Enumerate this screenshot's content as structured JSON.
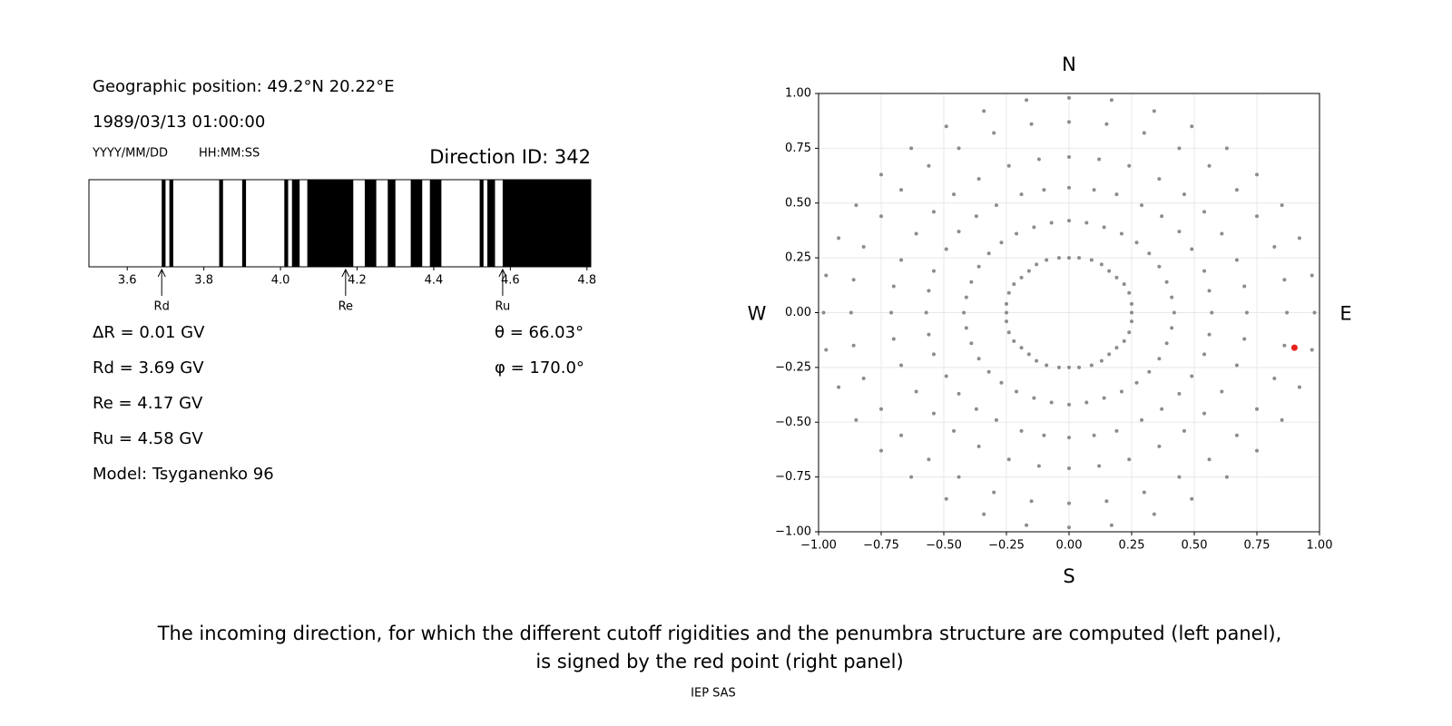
{
  "info": {
    "position": "Geographic position: 49.2°N 20.22°E",
    "datetime": "1989/03/13 01:00:00",
    "date_format": "YYYY/MM/DD",
    "time_format": "HH:MM:SS",
    "direction": "Direction ID: 342",
    "params": [
      "ΔR = 0.01 GV",
      "Rd = 3.69 GV",
      "Re = 4.17 GV",
      "Ru = 4.58 GV",
      "Model: Tsyganenko 96"
    ],
    "angles": [
      "θ = 66.03°",
      "φ = 170.0°"
    ]
  },
  "chart_data": [
    {
      "type": "penumbra",
      "color": "#000000",
      "xlim": [
        3.5,
        4.81
      ],
      "xticks": [
        3.6,
        3.8,
        {
          "value": 4,
          "label": "4.0"
        },
        4.2,
        4.4,
        4.6,
        4.8
      ],
      "bands": [
        [
          3.69,
          3.7
        ],
        [
          3.71,
          3.72
        ],
        [
          3.84,
          3.85
        ],
        [
          3.9,
          3.91
        ],
        [
          4.01,
          4.02
        ],
        [
          4.03,
          4.05
        ],
        [
          4.07,
          4.19
        ],
        [
          4.22,
          4.25
        ],
        [
          4.28,
          4.3
        ],
        [
          4.34,
          4.37
        ],
        [
          4.39,
          4.42
        ],
        [
          4.52,
          4.53
        ],
        [
          4.54,
          4.56
        ],
        [
          4.58,
          4.81
        ]
      ],
      "markers": [
        {
          "label": "Rd",
          "value": 3.69
        },
        {
          "label": "Re",
          "value": 4.17
        },
        {
          "label": "Ru",
          "value": 4.58
        }
      ]
    },
    {
      "type": "scatter",
      "grid": true,
      "xlim": [
        -1,
        1
      ],
      "ylim": [
        -1,
        1
      ],
      "xticks": [
        {
          "value": -1,
          "label": "−1.00"
        },
        {
          "value": -0.75,
          "label": "−0.75"
        },
        {
          "value": -0.5,
          "label": "−0.50"
        },
        {
          "value": -0.25,
          "label": "−0.25"
        },
        {
          "value": 0,
          "label": "0.00"
        },
        {
          "value": 0.25,
          "label": "0.25"
        },
        {
          "value": 0.5,
          "label": "0.50"
        },
        {
          "value": 0.75,
          "label": "0.75"
        },
        {
          "value": 1,
          "label": "1.00"
        }
      ],
      "yticks": [
        {
          "value": -1,
          "label": "−1.00"
        },
        {
          "value": -0.75,
          "label": "−0.75"
        },
        {
          "value": -0.5,
          "label": "−0.50"
        },
        {
          "value": -0.25,
          "label": "−0.25"
        },
        {
          "value": 0,
          "label": "0.00"
        },
        {
          "value": 0.25,
          "label": "0.25"
        },
        {
          "value": 0.5,
          "label": "0.50"
        },
        {
          "value": 0.75,
          "label": "0.75"
        },
        {
          "value": 1,
          "label": "1.00"
        }
      ],
      "compass": {
        "north": "N",
        "south": "S",
        "west": "W",
        "east": "E"
      },
      "series": [
        {
          "color": "#8c8c8c",
          "x": [
            0.25,
            0.25,
            0.24,
            0.22,
            0.19,
            0.16,
            0.13,
            0.09,
            0.04,
            0,
            -0.04,
            -0.09,
            -0.13,
            -0.16,
            -0.19,
            -0.22,
            -0.24,
            -0.25,
            -0.25,
            -0.25,
            -0.24,
            -0.22,
            -0.19,
            -0.16,
            -0.13,
            -0.09,
            -0.04,
            0,
            0.04,
            0.09,
            0.13,
            0.16,
            0.19,
            0.22,
            0.24,
            0.25,
            0.42,
            0.41,
            0.39,
            0.36,
            0.32,
            0.27,
            0.21,
            0.14,
            0.07,
            0,
            -0.07,
            -0.14,
            -0.21,
            -0.27,
            -0.32,
            -0.36,
            -0.39,
            -0.41,
            -0.42,
            -0.41,
            -0.39,
            -0.36,
            -0.32,
            -0.27,
            -0.21,
            -0.14,
            -0.07,
            0,
            0.07,
            0.14,
            0.21,
            0.27,
            0.32,
            0.36,
            0.39,
            0.41,
            0.57,
            0.56,
            0.54,
            0.49,
            0.44,
            0.37,
            0.29,
            0.19,
            0.1,
            0,
            -0.1,
            -0.19,
            -0.29,
            -0.37,
            -0.44,
            -0.49,
            -0.54,
            -0.56,
            -0.57,
            -0.56,
            -0.54,
            -0.49,
            -0.44,
            -0.37,
            -0.29,
            -0.19,
            -0.1,
            0,
            0.1,
            0.19,
            0.29,
            0.37,
            0.44,
            0.49,
            0.54,
            0.56,
            0.71,
            0.7,
            0.67,
            0.61,
            0.54,
            0.46,
            0.36,
            0.24,
            0.12,
            0,
            -0.12,
            -0.24,
            -0.36,
            -0.46,
            -0.54,
            -0.61,
            -0.67,
            -0.7,
            -0.71,
            -0.7,
            -0.67,
            -0.61,
            -0.54,
            -0.46,
            -0.36,
            -0.24,
            -0.12,
            0,
            0.12,
            0.24,
            0.36,
            0.46,
            0.54,
            0.61,
            0.67,
            0.7,
            0.87,
            0.86,
            0.82,
            0.75,
            0.67,
            0.56,
            0.44,
            0.3,
            0.15,
            0,
            -0.15,
            -0.3,
            -0.44,
            -0.56,
            -0.67,
            -0.75,
            -0.82,
            -0.86,
            -0.87,
            -0.86,
            -0.82,
            -0.75,
            -0.67,
            -0.56,
            -0.44,
            -0.3,
            -0.15,
            0,
            0.15,
            0.3,
            0.44,
            0.56,
            0.67,
            0.75,
            0.82,
            0.86,
            0.98,
            0.97,
            0.92,
            0.85,
            0.75,
            0.63,
            0.49,
            0.34,
            0.17,
            0,
            -0.17,
            -0.34,
            -0.49,
            -0.63,
            -0.75,
            -0.85,
            -0.92,
            -0.97,
            -0.98,
            -0.97,
            -0.92,
            -0.85,
            -0.75,
            -0.63,
            -0.49,
            -0.34,
            -0.17,
            0,
            0.17,
            0.34,
            0.49,
            0.63,
            0.75,
            0.85,
            0.92,
            0.97
          ],
          "y": [
            0,
            0.04,
            0.09,
            0.13,
            0.16,
            0.19,
            0.22,
            0.24,
            0.25,
            0.25,
            0.25,
            0.24,
            0.22,
            0.19,
            0.16,
            0.13,
            0.09,
            0.04,
            0,
            -0.04,
            -0.09,
            -0.13,
            -0.16,
            -0.19,
            -0.22,
            -0.24,
            -0.25,
            -0.25,
            -0.25,
            -0.24,
            -0.22,
            -0.19,
            -0.16,
            -0.13,
            -0.09,
            -0.04,
            0,
            0.07,
            0.14,
            0.21,
            0.27,
            0.32,
            0.36,
            0.39,
            0.41,
            0.42,
            0.41,
            0.39,
            0.36,
            0.32,
            0.27,
            0.21,
            0.14,
            0.07,
            0,
            -0.07,
            -0.14,
            -0.21,
            -0.27,
            -0.32,
            -0.36,
            -0.39,
            -0.41,
            -0.42,
            -0.41,
            -0.39,
            -0.36,
            -0.32,
            -0.27,
            -0.21,
            -0.14,
            -0.07,
            0,
            0.1,
            0.19,
            0.29,
            0.37,
            0.44,
            0.49,
            0.54,
            0.56,
            0.57,
            0.56,
            0.54,
            0.49,
            0.44,
            0.37,
            0.29,
            0.19,
            0.1,
            0,
            -0.1,
            -0.19,
            -0.29,
            -0.37,
            -0.44,
            -0.49,
            -0.54,
            -0.56,
            -0.57,
            -0.56,
            -0.54,
            -0.49,
            -0.44,
            -0.37,
            -0.29,
            -0.19,
            -0.1,
            0,
            0.12,
            0.24,
            0.36,
            0.46,
            0.54,
            0.61,
            0.67,
            0.7,
            0.71,
            0.7,
            0.67,
            0.61,
            0.54,
            0.46,
            0.36,
            0.24,
            0.12,
            0,
            -0.12,
            -0.24,
            -0.36,
            -0.46,
            -0.54,
            -0.61,
            -0.67,
            -0.7,
            -0.71,
            -0.7,
            -0.67,
            -0.61,
            -0.54,
            -0.46,
            -0.36,
            -0.24,
            -0.12,
            0,
            0.15,
            0.3,
            0.44,
            0.56,
            0.67,
            0.75,
            0.82,
            0.86,
            0.87,
            0.86,
            0.82,
            0.75,
            0.67,
            0.56,
            0.44,
            0.3,
            0.15,
            0,
            -0.15,
            -0.3,
            -0.44,
            -0.56,
            -0.67,
            -0.75,
            -0.82,
            -0.86,
            -0.87,
            -0.86,
            -0.82,
            -0.75,
            -0.67,
            -0.56,
            -0.44,
            -0.3,
            -0.15,
            0,
            0.17,
            0.34,
            0.49,
            0.63,
            0.75,
            0.85,
            0.92,
            0.97,
            0.98,
            0.97,
            0.92,
            0.85,
            0.75,
            0.63,
            0.49,
            0.34,
            0.17,
            0,
            -0.17,
            -0.34,
            -0.49,
            -0.63,
            -0.75,
            -0.85,
            -0.92,
            -0.97,
            -0.98,
            -0.97,
            -0.92,
            -0.85,
            -0.75,
            -0.63,
            -0.49,
            -0.34,
            -0.17
          ]
        },
        {
          "color": "#e8211c",
          "x": [
            0.9
          ],
          "y": [
            -0.16
          ]
        }
      ]
    }
  ],
  "caption": [
    "The incoming direction, for which the different cutoff rigidities and the penumbra structure are computed (left panel),",
    "is signed by the red point (right panel)"
  ],
  "footer": "IEP SAS"
}
